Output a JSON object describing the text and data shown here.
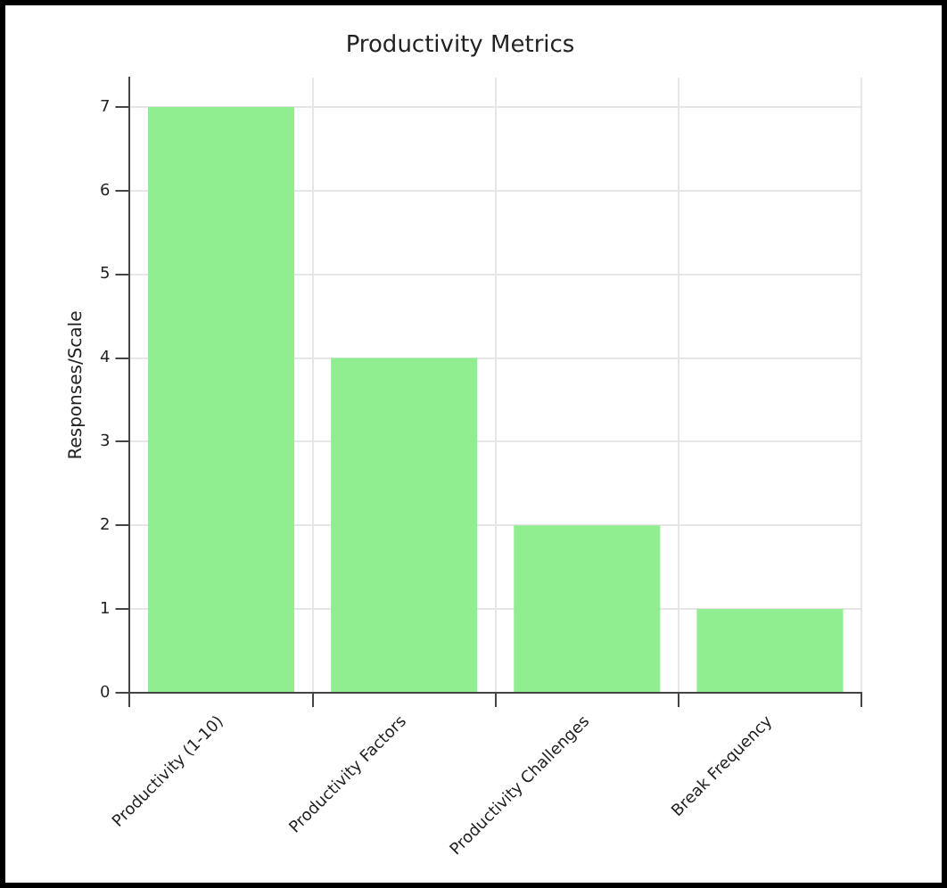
{
  "chart_data": {
    "type": "bar",
    "title": "Productivity Metrics",
    "ylabel": "Responses/Scale",
    "categories": [
      "Productivity (1-10)",
      "Productivity Factors",
      "Productivity Challenges",
      "Break Frequency"
    ],
    "values": [
      7,
      4,
      2,
      1
    ],
    "color": "#90ee90",
    "ylim": [
      0,
      7.35
    ],
    "yticks": [
      0,
      1,
      2,
      3,
      4,
      5,
      6,
      7
    ],
    "grid": true
  }
}
